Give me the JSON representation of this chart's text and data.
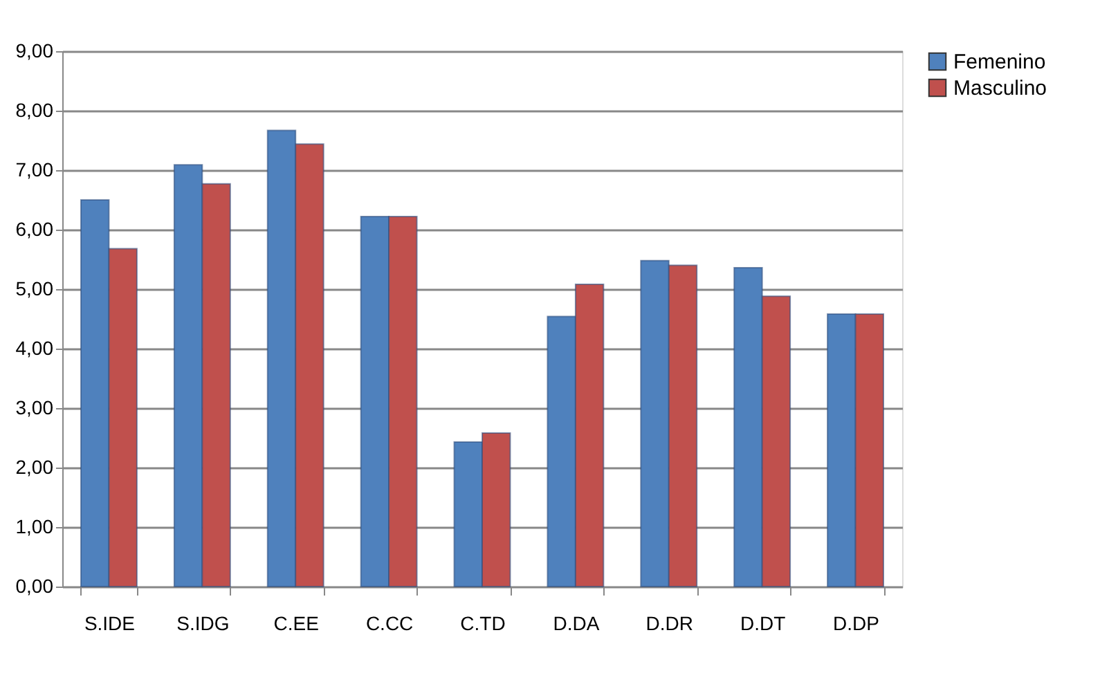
{
  "chart_data": {
    "type": "bar",
    "categories": [
      "S.IDE",
      "S.IDG",
      "C.EE",
      "C.CC",
      "C.TD",
      "D.DA",
      "D.DR",
      "D.DT",
      "D.DP"
    ],
    "series": [
      {
        "name": "Femenino",
        "color": "#4f81bd",
        "values": [
          6.5,
          7.09,
          7.67,
          6.22,
          2.43,
          4.54,
          5.48,
          5.36,
          4.58
        ]
      },
      {
        "name": "Masculino",
        "color": "#c0504d",
        "values": [
          5.68,
          6.77,
          7.44,
          6.22,
          2.58,
          5.08,
          5.4,
          4.88,
          4.58
        ]
      }
    ],
    "ylim": [
      0,
      9
    ],
    "yticks": [
      {
        "value": 0,
        "label": "0,00"
      },
      {
        "value": 1,
        "label": "1,00"
      },
      {
        "value": 2,
        "label": "2,00"
      },
      {
        "value": 3,
        "label": "3,00"
      },
      {
        "value": 4,
        "label": "4,00"
      },
      {
        "value": 5,
        "label": "5,00"
      },
      {
        "value": 6,
        "label": "6,00"
      },
      {
        "value": 7,
        "label": "7,00"
      },
      {
        "value": 8,
        "label": "8,00"
      },
      {
        "value": 9,
        "label": "9,00"
      }
    ],
    "grid": "y",
    "legend": "right"
  }
}
